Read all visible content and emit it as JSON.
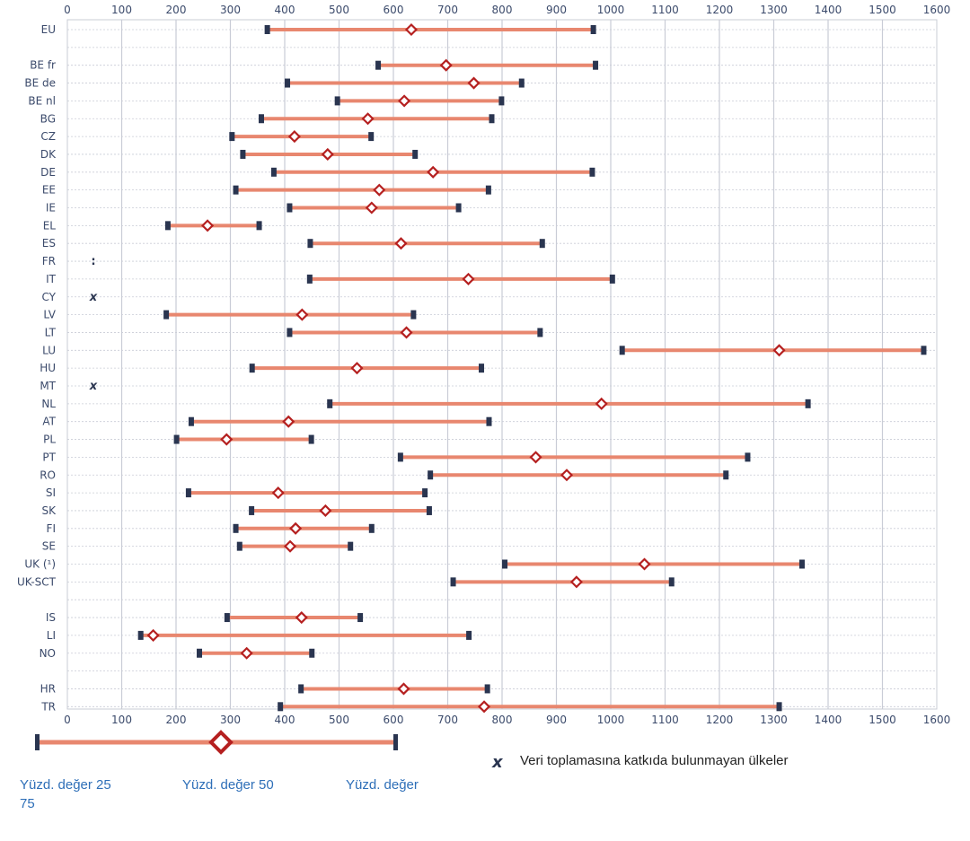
{
  "chart_data": {
    "type": "range",
    "xlim": [
      0,
      1600
    ],
    "xticks": [
      "0",
      "100",
      "200",
      "300",
      "400",
      "500",
      "600",
      "700",
      "800",
      "900",
      "1000",
      "1100",
      "1200",
      "1300",
      "1400",
      "1500",
      "1600"
    ],
    "grid": "vertical",
    "series_labels": {
      "p25": "Yüzd. değer 25",
      "p50": "Yüzd. değer 50",
      "p75": "Yüzd. değer 75"
    },
    "colors": {
      "bar": "#e8876f",
      "median": "#b52020",
      "whisker": "#2a3550",
      "grid": "#c9ccd6"
    },
    "rows": [
      {
        "label": "EU",
        "p25": 368,
        "p50": 633,
        "p75": 968
      },
      {
        "gap": true
      },
      {
        "label": "BE fr",
        "p25": 572,
        "p50": 697,
        "p75": 972
      },
      {
        "label": "BE de",
        "p25": 405,
        "p50": 748,
        "p75": 836
      },
      {
        "label": "BE nl",
        "p25": 497,
        "p50": 620,
        "p75": 799
      },
      {
        "label": "BG",
        "p25": 357,
        "p50": 553,
        "p75": 781
      },
      {
        "label": "CZ",
        "p25": 303,
        "p50": 418,
        "p75": 559
      },
      {
        "label": "DK",
        "p25": 323,
        "p50": 479,
        "p75": 640
      },
      {
        "label": "DE",
        "p25": 380,
        "p50": 673,
        "p75": 966
      },
      {
        "label": "EE",
        "p25": 310,
        "p50": 574,
        "p75": 775
      },
      {
        "label": "IE",
        "p25": 409,
        "p50": 560,
        "p75": 720
      },
      {
        "label": "EL",
        "p25": 185,
        "p50": 258,
        "p75": 353
      },
      {
        "label": "ES",
        "p25": 447,
        "p50": 614,
        "p75": 874
      },
      {
        "label": "FR",
        "note": ":"
      },
      {
        "label": "IT",
        "p25": 446,
        "p50": 738,
        "p75": 1003
      },
      {
        "label": "CY",
        "note": "x"
      },
      {
        "label": "LV",
        "p25": 182,
        "p50": 432,
        "p75": 637
      },
      {
        "label": "LT",
        "p25": 409,
        "p50": 624,
        "p75": 870
      },
      {
        "label": "LU",
        "p25": 1021,
        "p50": 1310,
        "p75": 1576
      },
      {
        "label": "HU",
        "p25": 340,
        "p50": 533,
        "p75": 762
      },
      {
        "label": "MT",
        "note": "x"
      },
      {
        "label": "NL",
        "p25": 483,
        "p50": 983,
        "p75": 1363
      },
      {
        "label": "AT",
        "p25": 228,
        "p50": 407,
        "p75": 776
      },
      {
        "label": "PL",
        "p25": 201,
        "p50": 293,
        "p75": 449
      },
      {
        "label": "PT",
        "p25": 613,
        "p50": 862,
        "p75": 1252
      },
      {
        "label": "RO",
        "p25": 668,
        "p50": 919,
        "p75": 1212
      },
      {
        "label": "SI",
        "p25": 223,
        "p50": 388,
        "p75": 658
      },
      {
        "label": "SK",
        "p25": 339,
        "p50": 475,
        "p75": 666
      },
      {
        "label": "FI",
        "p25": 310,
        "p50": 420,
        "p75": 560
      },
      {
        "label": "SE",
        "p25": 317,
        "p50": 410,
        "p75": 521
      },
      {
        "label": "UK (¹)",
        "p25": 805,
        "p50": 1062,
        "p75": 1352
      },
      {
        "label": "UK-SCT",
        "p25": 710,
        "p50": 937,
        "p75": 1112
      },
      {
        "gap": true
      },
      {
        "label": "IS",
        "p25": 294,
        "p50": 431,
        "p75": 539
      },
      {
        "label": "LI",
        "p25": 135,
        "p50": 158,
        "p75": 739
      },
      {
        "label": "NO",
        "p25": 243,
        "p50": 330,
        "p75": 450
      },
      {
        "gap": true
      },
      {
        "label": "HR",
        "p25": 430,
        "p50": 619,
        "p75": 773
      },
      {
        "label": "TR",
        "p25": 392,
        "p50": 767,
        "p75": 1310
      }
    ]
  },
  "legend": {
    "p25_label": "Yüzd. değer 25",
    "p50_label": "Yüzd. değer 50",
    "p75_label_part1": "Yüzd. değer",
    "p75_label_part2": "75",
    "no_data_icon": "x-mark-icon",
    "no_data_text": "Veri toplamasına katkıda bulunmayan ülkeler"
  }
}
